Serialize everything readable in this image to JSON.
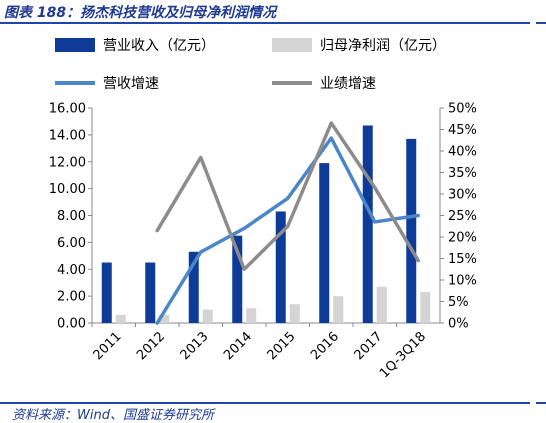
{
  "header": {
    "title": "图表 188：扬杰科技营收及归母净利润情况"
  },
  "footer": {
    "source": "资料来源：Wind、国盛证券研究所"
  },
  "chart_data": {
    "type": "bar",
    "title": "",
    "categories": [
      "2011",
      "2012",
      "2013",
      "2014",
      "2015",
      "2016",
      "2017",
      "1Q-3Q18"
    ],
    "series": [
      {
        "name": "营业收入（亿元）",
        "type": "bar",
        "axis": "left",
        "color": "#0e3b98",
        "values": [
          4.5,
          4.5,
          5.3,
          6.5,
          8.3,
          11.9,
          14.7,
          13.7
        ]
      },
      {
        "name": "归母净利润（亿元）",
        "type": "bar",
        "axis": "left",
        "color": "#d4d4d4",
        "values": [
          0.6,
          0.6,
          1.0,
          1.1,
          1.4,
          2.0,
          2.7,
          2.3
        ]
      },
      {
        "name": "营收增速",
        "type": "line",
        "axis": "right",
        "color": "#4b86c9",
        "values": [
          null,
          0.0,
          0.165,
          0.22,
          0.29,
          0.43,
          0.235,
          0.25
        ]
      },
      {
        "name": "业绩增速",
        "type": "line",
        "axis": "right",
        "color": "#8c8c8c",
        "values": [
          null,
          0.215,
          0.385,
          0.125,
          0.225,
          0.465,
          0.315,
          0.145
        ]
      }
    ],
    "y_left": {
      "lim": [
        0,
        16
      ],
      "ticks": [
        0,
        2,
        4,
        6,
        8,
        10,
        12,
        14,
        16
      ],
      "tick_labels": [
        "0.00",
        "2.00",
        "4.00",
        "6.00",
        "8.00",
        "10.00",
        "12.00",
        "14.00",
        "16.00"
      ]
    },
    "y_right": {
      "lim": [
        0,
        0.5
      ],
      "ticks": [
        0,
        0.05,
        0.1,
        0.15,
        0.2,
        0.25,
        0.3,
        0.35,
        0.4,
        0.45,
        0.5
      ],
      "tick_labels": [
        "0%",
        "5%",
        "10%",
        "15%",
        "20%",
        "25%",
        "30%",
        "35%",
        "40%",
        "45%",
        "50%"
      ]
    },
    "legend": "top",
    "grid": false
  }
}
